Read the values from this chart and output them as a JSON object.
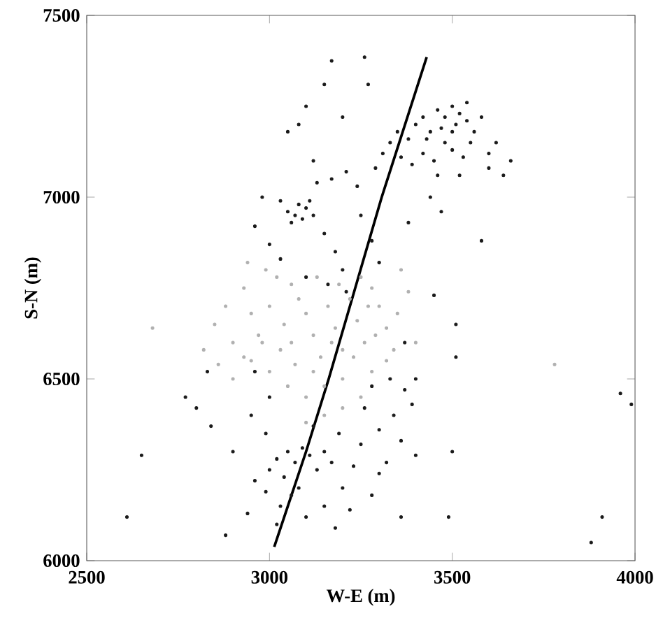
{
  "chart_data": {
    "type": "scatter",
    "xlabel": "W-E (m)",
    "ylabel": "S-N (m)",
    "xlim": [
      2500,
      4000
    ],
    "ylim": [
      6000,
      7500
    ],
    "xticks": [
      2500,
      3000,
      3500,
      4000
    ],
    "yticks": [
      6000,
      6500,
      7000,
      7500
    ],
    "grid": false,
    "series": [
      {
        "color": "#b0b0b0",
        "marker": "circle",
        "x": [
          2850,
          2880,
          2900,
          2930,
          2950,
          2970,
          3000,
          3020,
          3040,
          3060,
          3080,
          3100,
          3120,
          3140,
          3160,
          3180,
          3200,
          3220,
          3240,
          3260,
          3280,
          3300,
          3320,
          3340,
          3360,
          3380,
          3300,
          3250,
          2820,
          2860,
          2900,
          2950,
          3000,
          3050,
          3100,
          3150,
          3200,
          3250,
          3280,
          3320,
          3200,
          3150,
          3100,
          2980,
          2930,
          3030,
          3070,
          3120,
          3170,
          3230,
          3270,
          3190,
          3130,
          3060,
          2990,
          2940,
          3350,
          3400,
          3290,
          3780,
          2680
        ],
        "values": [
          6650,
          6700,
          6600,
          6750,
          6680,
          6620,
          6700,
          6780,
          6650,
          6600,
          6720,
          6680,
          6620,
          6560,
          6700,
          6640,
          6580,
          6720,
          6660,
          6600,
          6750,
          6700,
          6640,
          6580,
          6800,
          6740,
          6820,
          6780,
          6580,
          6540,
          6500,
          6550,
          6520,
          6480,
          6450,
          6480,
          6500,
          6450,
          6520,
          6550,
          6420,
          6400,
          6380,
          6600,
          6560,
          6580,
          6540,
          6520,
          6600,
          6560,
          6700,
          6760,
          6780,
          6760,
          6800,
          6820,
          6680,
          6600,
          6620,
          6540,
          6640
        ]
      },
      {
        "color": "#1a1a1a",
        "marker": "circle",
        "x": [
          3170,
          3260,
          3100,
          3150,
          3270,
          3080,
          3050,
          3120,
          3200,
          3620,
          3660,
          3640,
          3520,
          3440,
          3380,
          3580,
          3470,
          3330,
          3350,
          3380,
          3400,
          3420,
          3440,
          3460,
          3480,
          3500,
          3520,
          3540,
          3560,
          3420,
          3450,
          3480,
          3500,
          3530,
          3550,
          3390,
          3360,
          3310,
          3290,
          3460,
          3500,
          3540,
          3430,
          3470,
          3510,
          3580,
          3600,
          3600,
          3050,
          3070,
          3080,
          3100,
          3060,
          3090,
          3110,
          3030,
          3120,
          2980,
          2960,
          3000,
          3030,
          3150,
          3180,
          3200,
          3170,
          3210,
          3240,
          3130,
          3250,
          3280,
          3300,
          3210,
          3160,
          3100,
          3450,
          3370,
          3020,
          3050,
          3070,
          3090,
          3110,
          3000,
          3040,
          3080,
          3130,
          3150,
          3170,
          3060,
          3030,
          2990,
          2960,
          2940,
          3100,
          3150,
          3200,
          3230,
          3250,
          3190,
          3120,
          2990,
          2950,
          2900,
          2880,
          3020,
          3180,
          3220,
          3280,
          3300,
          3000,
          2960,
          2830,
          2800,
          2770,
          2840,
          3280,
          3330,
          3370,
          3390,
          3340,
          3300,
          3360,
          3400,
          3320,
          3260,
          3400,
          2610,
          2650,
          3880,
          3910,
          3960,
          3990,
          3490,
          3500,
          3510,
          3510,
          3360
        ],
        "values": [
          7375,
          7385,
          7250,
          7310,
          7310,
          7200,
          7180,
          7100,
          7220,
          7150,
          7100,
          7060,
          7060,
          7000,
          6930,
          6880,
          6960,
          7150,
          7180,
          7160,
          7200,
          7220,
          7180,
          7240,
          7220,
          7250,
          7230,
          7210,
          7180,
          7120,
          7100,
          7150,
          7130,
          7110,
          7150,
          7090,
          7110,
          7120,
          7080,
          7060,
          7180,
          7260,
          7160,
          7190,
          7200,
          7220,
          7120,
          7080,
          6960,
          6950,
          6980,
          6970,
          6930,
          6940,
          6990,
          6990,
          6950,
          7000,
          6920,
          6870,
          6830,
          6900,
          6850,
          6800,
          7050,
          7070,
          7030,
          7040,
          6950,
          6880,
          6820,
          6740,
          6760,
          6780,
          6730,
          6600,
          6280,
          6300,
          6270,
          6310,
          6290,
          6250,
          6230,
          6200,
          6250,
          6300,
          6270,
          6180,
          6150,
          6190,
          6220,
          6130,
          6120,
          6150,
          6200,
          6260,
          6320,
          6350,
          6370,
          6350,
          6400,
          6300,
          6070,
          6100,
          6090,
          6140,
          6180,
          6240,
          6450,
          6520,
          6520,
          6420,
          6450,
          6370,
          6480,
          6500,
          6470,
          6430,
          6400,
          6360,
          6330,
          6290,
          6270,
          6420,
          6500,
          6120,
          6290,
          6050,
          6120,
          6460,
          6430,
          6120,
          6300,
          6560,
          6650,
          6120
        ]
      },
      {
        "type": "line",
        "marker": "none",
        "color": "#000000",
        "x": [
          3013,
          3100,
          3162,
          3307,
          3430
        ],
        "values": [
          6038,
          6300,
          6500,
          7000,
          7385
        ]
      }
    ]
  }
}
